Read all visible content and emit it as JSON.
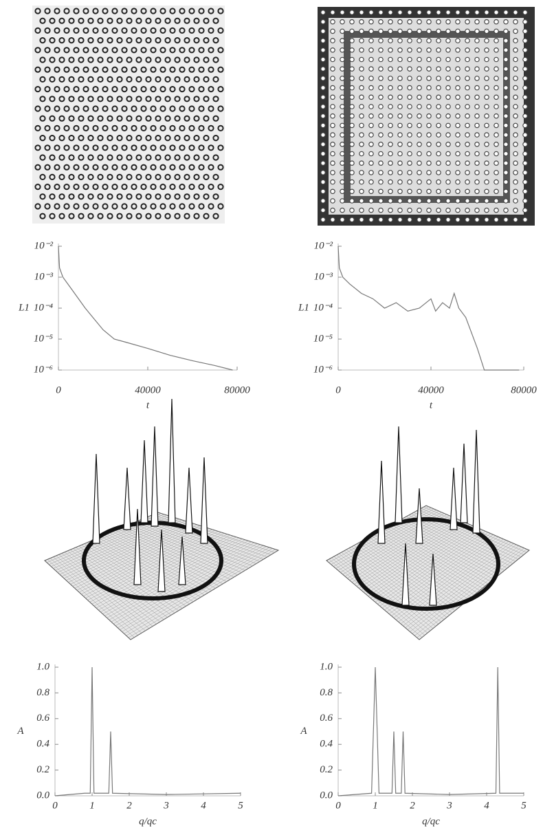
{
  "chart_data": [
    {
      "type": "line",
      "log_y": true,
      "y_label": "L1",
      "x_label": "t",
      "x": [
        0,
        500,
        2000,
        6000,
        12000,
        20000,
        25000,
        30000,
        40000,
        50000,
        60000,
        70000,
        78000
      ],
      "series": [
        {
          "color": "#777777",
          "values": [
            0.01,
            0.002,
            0.001,
            0.0004,
            0.0001,
            2e-05,
            1e-05,
            8e-06,
            5e-06,
            3e-06,
            2e-06,
            1.4e-06,
            1e-06
          ]
        }
      ],
      "xlim": [
        0,
        80000
      ],
      "ylim": [
        1e-06,
        0.01
      ],
      "xticks": [
        0,
        40000,
        80000
      ],
      "yticks": [
        {
          "value": 0.01,
          "label": "10⁻²"
        },
        {
          "value": 0.001,
          "label": "10⁻³"
        },
        {
          "value": 0.0001,
          "label": "10⁻⁴"
        },
        {
          "value": 1e-05,
          "label": "10⁻⁵"
        },
        {
          "value": 1e-06,
          "label": "10⁻⁶"
        }
      ]
    },
    {
      "type": "line",
      "log_y": true,
      "y_label": "L1",
      "x_label": "t",
      "x": [
        0,
        500,
        2000,
        5000,
        10000,
        15000,
        20000,
        25000,
        30000,
        35000,
        40000,
        42000,
        45000,
        48000,
        50000,
        52000,
        55000,
        60000,
        63000,
        70000,
        78000
      ],
      "series": [
        {
          "color": "#777777",
          "values": [
            0.01,
            0.002,
            0.001,
            0.0006,
            0.0003,
            0.0002,
            0.0001,
            0.00015,
            8e-05,
            0.0001,
            0.0002,
            8e-05,
            0.00015,
            0.0001,
            0.0003,
            0.0001,
            5e-05,
            5e-06,
            1e-06,
            1e-06,
            1e-06
          ]
        }
      ],
      "xlim": [
        0,
        80000
      ],
      "ylim": [
        1e-06,
        0.01
      ],
      "xticks": [
        0,
        40000,
        80000
      ],
      "yticks": [
        {
          "value": 0.01,
          "label": "10⁻²"
        },
        {
          "value": 0.001,
          "label": "10⁻³"
        },
        {
          "value": 0.0001,
          "label": "10⁻⁴"
        },
        {
          "value": 1e-05,
          "label": "10⁻⁵"
        },
        {
          "value": 1e-06,
          "label": "10⁻⁶"
        }
      ]
    },
    {
      "type": "line",
      "log_y": false,
      "y_label": "A",
      "x_label": "q/qc",
      "x": [
        0,
        0.8,
        0.95,
        1,
        1.05,
        1.45,
        1.5,
        1.55,
        3,
        5
      ],
      "series": [
        {
          "color": "#777777",
          "values": [
            0,
            0.02,
            0.02,
            1,
            0.02,
            0.02,
            0.5,
            0.02,
            0.01,
            0.02
          ]
        }
      ],
      "xlim": [
        0,
        5
      ],
      "ylim": [
        0,
        1
      ],
      "xticks": [
        0,
        1,
        2,
        3,
        4,
        5
      ],
      "yticks": [
        {
          "value": 0,
          "label": "0.0"
        },
        0.2,
        0.4,
        0.6,
        0.8,
        {
          "value": 1,
          "label": "1.0"
        }
      ]
    },
    {
      "type": "line",
      "log_y": false,
      "y_label": "A",
      "x_label": "q/qc",
      "x": [
        0,
        0.9,
        1,
        1.1,
        1.45,
        1.5,
        1.55,
        1.7,
        1.75,
        1.8,
        3,
        4.25,
        4.3,
        4.35,
        5
      ],
      "series": [
        {
          "color": "#777777",
          "values": [
            0,
            0.02,
            1,
            0.02,
            0.02,
            0.5,
            0.02,
            0.02,
            0.5,
            0.02,
            0.01,
            0.02,
            1,
            0.02,
            0.02
          ]
        }
      ],
      "xlim": [
        0,
        5
      ],
      "ylim": [
        0,
        1
      ],
      "xticks": [
        0,
        1,
        2,
        3,
        4,
        5
      ],
      "yticks": [
        {
          "value": 0,
          "label": "0.0"
        },
        0.2,
        0.4,
        0.6,
        0.8,
        {
          "value": 1,
          "label": "1.0"
        }
      ]
    }
  ]
}
